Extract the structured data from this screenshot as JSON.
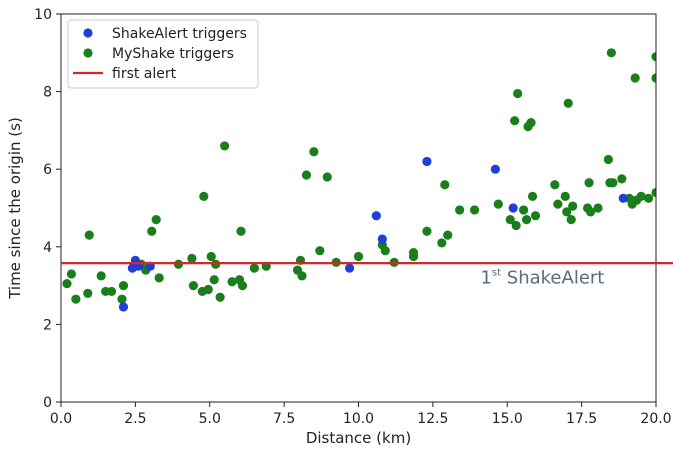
{
  "chart_data": {
    "type": "scatter",
    "xlabel": "Distance (km)",
    "ylabel": "Time since the origin (s)",
    "xlim": [
      0,
      20
    ],
    "ylim": [
      0,
      10
    ],
    "x_ticks": [
      "0.0",
      "2.5",
      "5.0",
      "7.5",
      "10.0",
      "12.5",
      "15.0",
      "17.5",
      "20.0"
    ],
    "y_ticks": [
      "0",
      "2",
      "4",
      "6",
      "8",
      "10"
    ],
    "grid": false,
    "legend_position": "top-left",
    "series": [
      {
        "name": "ShakeAlert triggers",
        "color": "#1f3fd6",
        "points": [
          [
            2.1,
            2.45
          ],
          [
            2.4,
            3.45
          ],
          [
            2.5,
            3.65
          ],
          [
            2.6,
            3.5
          ],
          [
            3.0,
            3.5
          ],
          [
            9.7,
            3.45
          ],
          [
            10.6,
            4.8
          ],
          [
            10.8,
            4.2
          ],
          [
            12.3,
            6.2
          ],
          [
            14.6,
            6.0
          ],
          [
            15.2,
            5.0
          ],
          [
            18.9,
            5.25
          ]
        ]
      },
      {
        "name": "MyShake triggers",
        "color": "#1a7f1a",
        "points": [
          [
            0.2,
            3.05
          ],
          [
            0.35,
            3.3
          ],
          [
            0.5,
            2.65
          ],
          [
            0.9,
            2.8
          ],
          [
            0.95,
            4.3
          ],
          [
            1.35,
            3.25
          ],
          [
            1.5,
            2.85
          ],
          [
            1.7,
            2.85
          ],
          [
            2.05,
            2.65
          ],
          [
            2.1,
            3.0
          ],
          [
            2.7,
            3.55
          ],
          [
            2.85,
            3.4
          ],
          [
            3.05,
            4.4
          ],
          [
            3.2,
            4.7
          ],
          [
            3.3,
            3.2
          ],
          [
            3.95,
            3.55
          ],
          [
            4.4,
            3.7
          ],
          [
            4.45,
            3.0
          ],
          [
            4.75,
            2.85
          ],
          [
            4.8,
            5.3
          ],
          [
            4.95,
            2.9
          ],
          [
            5.05,
            3.75
          ],
          [
            5.15,
            3.15
          ],
          [
            5.2,
            3.55
          ],
          [
            5.35,
            2.7
          ],
          [
            5.5,
            6.6
          ],
          [
            5.75,
            3.1
          ],
          [
            6.0,
            3.15
          ],
          [
            6.05,
            4.4
          ],
          [
            6.1,
            3.0
          ],
          [
            6.5,
            3.45
          ],
          [
            6.9,
            3.5
          ],
          [
            7.95,
            3.4
          ],
          [
            8.05,
            3.65
          ],
          [
            8.1,
            3.25
          ],
          [
            8.25,
            5.85
          ],
          [
            8.5,
            6.45
          ],
          [
            8.7,
            3.9
          ],
          [
            8.95,
            5.8
          ],
          [
            9.25,
            3.6
          ],
          [
            10.0,
            3.75
          ],
          [
            10.8,
            4.05
          ],
          [
            10.9,
            3.9
          ],
          [
            11.2,
            3.6
          ],
          [
            11.85,
            3.75
          ],
          [
            11.85,
            3.85
          ],
          [
            12.3,
            4.4
          ],
          [
            12.8,
            4.1
          ],
          [
            12.9,
            5.6
          ],
          [
            13.0,
            4.3
          ],
          [
            13.4,
            4.95
          ],
          [
            13.9,
            4.95
          ],
          [
            14.7,
            5.1
          ],
          [
            15.1,
            4.7
          ],
          [
            15.25,
            7.25
          ],
          [
            15.3,
            4.55
          ],
          [
            15.35,
            7.95
          ],
          [
            15.55,
            4.95
          ],
          [
            15.65,
            4.7
          ],
          [
            15.7,
            7.1
          ],
          [
            15.8,
            7.2
          ],
          [
            15.95,
            4.8
          ],
          [
            15.85,
            5.3
          ],
          [
            16.6,
            5.6
          ],
          [
            16.7,
            5.1
          ],
          [
            16.95,
            5.3
          ],
          [
            17.0,
            4.9
          ],
          [
            17.05,
            7.7
          ],
          [
            17.15,
            4.7
          ],
          [
            17.2,
            5.05
          ],
          [
            17.7,
            5.0
          ],
          [
            17.75,
            5.65
          ],
          [
            17.8,
            4.9
          ],
          [
            18.05,
            5.0
          ],
          [
            18.4,
            6.25
          ],
          [
            18.45,
            5.65
          ],
          [
            18.55,
            5.65
          ],
          [
            18.5,
            9.0
          ],
          [
            18.85,
            5.75
          ],
          [
            19.1,
            5.25
          ],
          [
            19.2,
            5.1
          ],
          [
            19.3,
            8.35
          ],
          [
            19.35,
            5.2
          ],
          [
            19.5,
            5.3
          ],
          [
            19.75,
            5.25
          ],
          [
            20.0,
            8.9
          ],
          [
            20.0,
            5.4
          ],
          [
            20.0,
            8.35
          ]
        ]
      }
    ],
    "reference_lines": [
      {
        "name": "first alert",
        "type": "hline",
        "y": 3.58,
        "color": "#d62728"
      }
    ],
    "annotations": [
      {
        "text_main": "1",
        "text_sup": "st",
        "text_rest": " ShakeAlert",
        "x": 14.1,
        "y": 3.05
      }
    ]
  }
}
